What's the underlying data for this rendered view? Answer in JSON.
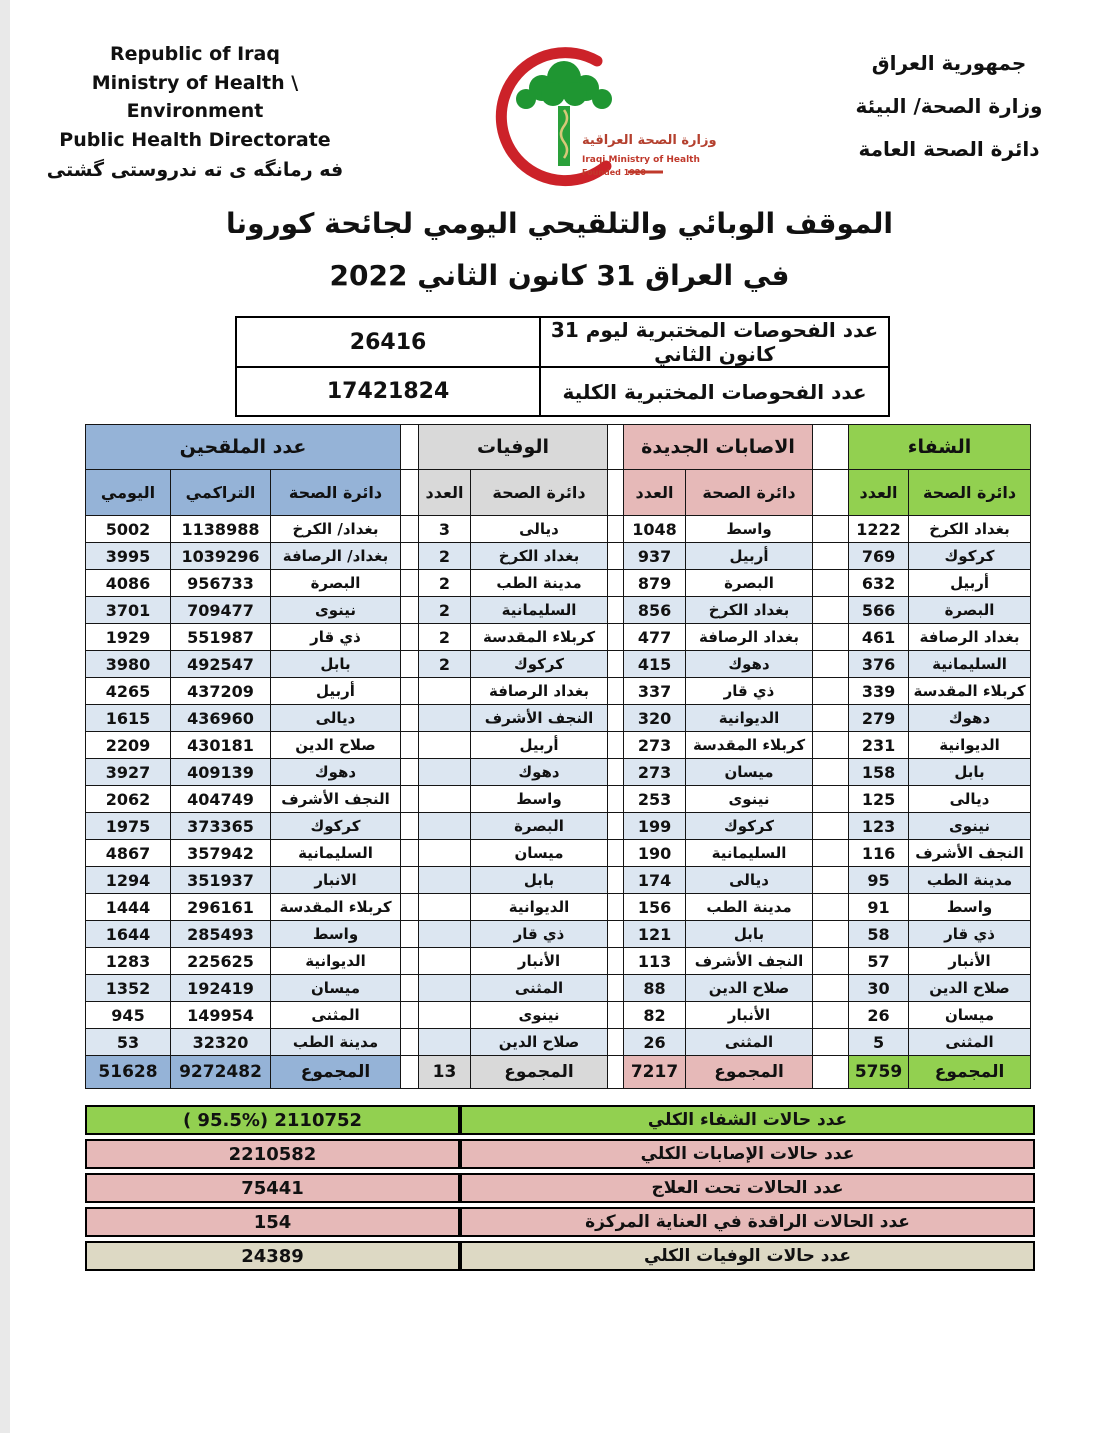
{
  "header": {
    "english_lines": [
      "Republic of Iraq",
      "Ministry of Health \\ Environment",
      "Public Health Directorate"
    ],
    "kurdish_line": "فه رمانگه ى ته ندروستى گشتى",
    "arabic_lines": [
      "جمهورية العراق",
      "وزارة الصحة/ البيئة",
      "دائرة الصحة العامة"
    ],
    "logo": {
      "arabic": "وزارة الصحة العراقية",
      "english": "Iraqi Ministry of Health",
      "founded": "Founded 1920"
    }
  },
  "title": {
    "line1": "الموقف الوبائي والتلقيحي اليومي لجائحة كورونا",
    "line2": "في العراق  31  كانون الثاني 2022"
  },
  "tests": {
    "rows": [
      {
        "label": "عدد الفحوصات المختبرية  ليوم 31  كانون الثاني",
        "value": "26416"
      },
      {
        "label": "عدد الفحوصات المختبرية الكلية",
        "value": "17421824"
      }
    ]
  },
  "tables": {
    "vaccinated": {
      "title": "عدد الملقحين",
      "col_daily": "اليومي",
      "col_cumulative": "التراكمي",
      "col_directorate": "دائرة الصحة",
      "rows": [
        {
          "daily": "5002",
          "cumulative": "1138988",
          "name": "بغداد/ الكرخ"
        },
        {
          "daily": "3995",
          "cumulative": "1039296",
          "name": "بغداد/ الرصافة"
        },
        {
          "daily": "4086",
          "cumulative": "956733",
          "name": "البصرة"
        },
        {
          "daily": "3701",
          "cumulative": "709477",
          "name": "نينوى"
        },
        {
          "daily": "1929",
          "cumulative": "551987",
          "name": "ذي قار"
        },
        {
          "daily": "3980",
          "cumulative": "492547",
          "name": "بابل"
        },
        {
          "daily": "4265",
          "cumulative": "437209",
          "name": "أربيل"
        },
        {
          "daily": "1615",
          "cumulative": "436960",
          "name": "ديالى"
        },
        {
          "daily": "2209",
          "cumulative": "430181",
          "name": "صلاح الدين"
        },
        {
          "daily": "3927",
          "cumulative": "409139",
          "name": "دهوك"
        },
        {
          "daily": "2062",
          "cumulative": "404749",
          "name": "النجف الأشرف"
        },
        {
          "daily": "1975",
          "cumulative": "373365",
          "name": "كركوك"
        },
        {
          "daily": "4867",
          "cumulative": "357942",
          "name": "السليمانية"
        },
        {
          "daily": "1294",
          "cumulative": "351937",
          "name": "الانبار"
        },
        {
          "daily": "1444",
          "cumulative": "296161",
          "name": "كربلاء المقدسة"
        },
        {
          "daily": "1644",
          "cumulative": "285493",
          "name": "واسط"
        },
        {
          "daily": "1283",
          "cumulative": "225625",
          "name": "الديوانية"
        },
        {
          "daily": "1352",
          "cumulative": "192419",
          "name": "ميسان"
        },
        {
          "daily": "945",
          "cumulative": "149954",
          "name": "المثنى"
        },
        {
          "daily": "53",
          "cumulative": "32320",
          "name": "مدينة الطب"
        }
      ],
      "total_label": "المجموع",
      "total_daily": "51628",
      "total_cumulative": "9272482"
    },
    "deaths": {
      "title": "الوفيات",
      "col_count": "العدد",
      "col_directorate": "دائرة الصحة",
      "rows": [
        {
          "count": "3",
          "name": "ديالى"
        },
        {
          "count": "2",
          "name": "بغداد الكرخ"
        },
        {
          "count": "2",
          "name": "مدينة الطب"
        },
        {
          "count": "2",
          "name": "السليمانية"
        },
        {
          "count": "2",
          "name": "كربلاء المقدسة"
        },
        {
          "count": "2",
          "name": "كركوك"
        },
        {
          "count": "",
          "name": "بغداد الرصافة"
        },
        {
          "count": "",
          "name": "النجف الأشرف"
        },
        {
          "count": "",
          "name": "أربيل"
        },
        {
          "count": "",
          "name": "دهوك"
        },
        {
          "count": "",
          "name": "واسط"
        },
        {
          "count": "",
          "name": "البصرة"
        },
        {
          "count": "",
          "name": "ميسان"
        },
        {
          "count": "",
          "name": "بابل"
        },
        {
          "count": "",
          "name": "الديوانية"
        },
        {
          "count": "",
          "name": "ذي قار"
        },
        {
          "count": "",
          "name": "الأنبار"
        },
        {
          "count": "",
          "name": "المثنى"
        },
        {
          "count": "",
          "name": "نينوى"
        },
        {
          "count": "",
          "name": "صلاح الدين"
        }
      ],
      "total_label": "المجموع",
      "total_count": "13"
    },
    "infections": {
      "title": "الاصابات الجديدة",
      "col_count": "العدد",
      "col_directorate": "دائرة الصحة",
      "rows": [
        {
          "count": "1048",
          "name": "واسط"
        },
        {
          "count": "937",
          "name": "أربيل"
        },
        {
          "count": "879",
          "name": "البصرة"
        },
        {
          "count": "856",
          "name": "بغداد الكرخ"
        },
        {
          "count": "477",
          "name": "بغداد الرصافة"
        },
        {
          "count": "415",
          "name": "دهوك"
        },
        {
          "count": "337",
          "name": "ذي قار"
        },
        {
          "count": "320",
          "name": "الديوانية"
        },
        {
          "count": "273",
          "name": "كربلاء المقدسة"
        },
        {
          "count": "273",
          "name": "ميسان"
        },
        {
          "count": "253",
          "name": "نينوى"
        },
        {
          "count": "199",
          "name": "كركوك"
        },
        {
          "count": "190",
          "name": "السليمانية"
        },
        {
          "count": "174",
          "name": "ديالى"
        },
        {
          "count": "156",
          "name": "مدينة الطب"
        },
        {
          "count": "121",
          "name": "بابل"
        },
        {
          "count": "113",
          "name": "النجف الأشرف"
        },
        {
          "count": "88",
          "name": "صلاح الدين"
        },
        {
          "count": "82",
          "name": "الأنبار"
        },
        {
          "count": "26",
          "name": "المثنى"
        }
      ],
      "total_label": "المجموع",
      "total_count": "7217"
    },
    "recovery": {
      "title": "الشفاء",
      "col_count": "العدد",
      "col_directorate": "دائرة الصحة",
      "rows": [
        {
          "count": "1222",
          "name": "بغداد الكرخ"
        },
        {
          "count": "769",
          "name": "كركوك"
        },
        {
          "count": "632",
          "name": "أربيل"
        },
        {
          "count": "566",
          "name": "البصرة"
        },
        {
          "count": "461",
          "name": "بغداد الرصافة"
        },
        {
          "count": "376",
          "name": "السليمانية"
        },
        {
          "count": "339",
          "name": "كربلاء المقدسة"
        },
        {
          "count": "279",
          "name": "دهوك"
        },
        {
          "count": "231",
          "name": "الديوانية"
        },
        {
          "count": "158",
          "name": "بابل"
        },
        {
          "count": "125",
          "name": "ديالى"
        },
        {
          "count": "123",
          "name": "نينوى"
        },
        {
          "count": "116",
          "name": "النجف الأشرف"
        },
        {
          "count": "95",
          "name": "مدينة الطب"
        },
        {
          "count": "91",
          "name": "واسط"
        },
        {
          "count": "58",
          "name": "ذي قار"
        },
        {
          "count": "57",
          "name": "الأنبار"
        },
        {
          "count": "30",
          "name": "صلاح الدين"
        },
        {
          "count": "26",
          "name": "ميسان"
        },
        {
          "count": "5",
          "name": "المثنى"
        }
      ],
      "total_label": "المجموع",
      "total_count": "5759"
    }
  },
  "summary": {
    "rows": [
      {
        "label": "عدد حالات الشفاء الكلي",
        "value": "( 95.5%)  2110752",
        "tone": "green"
      },
      {
        "label": "عدد حالات الإصابات الكلي",
        "value": "2210582",
        "tone": "pink"
      },
      {
        "label": "عدد الحالات تحت العلاج",
        "value": "75441",
        "tone": "pink"
      },
      {
        "label": "عدد الحالات الراقدة في العناية المركزة",
        "value": "154",
        "tone": "pink"
      },
      {
        "label": "عدد حالات الوفيات الكلي",
        "value": "24389",
        "tone": "beige"
      }
    ]
  },
  "colors": {
    "vaccinated_header": "#95b3d7",
    "deaths_header": "#d9d9d9",
    "infections_header": "#e6b9b8",
    "recovery_header": "#92d050",
    "row_stripe": "#dce6f1",
    "summary_deaths_row": "#ddd9c4",
    "crescent_red": "#cc2229",
    "tree_green": "#1f9632"
  }
}
